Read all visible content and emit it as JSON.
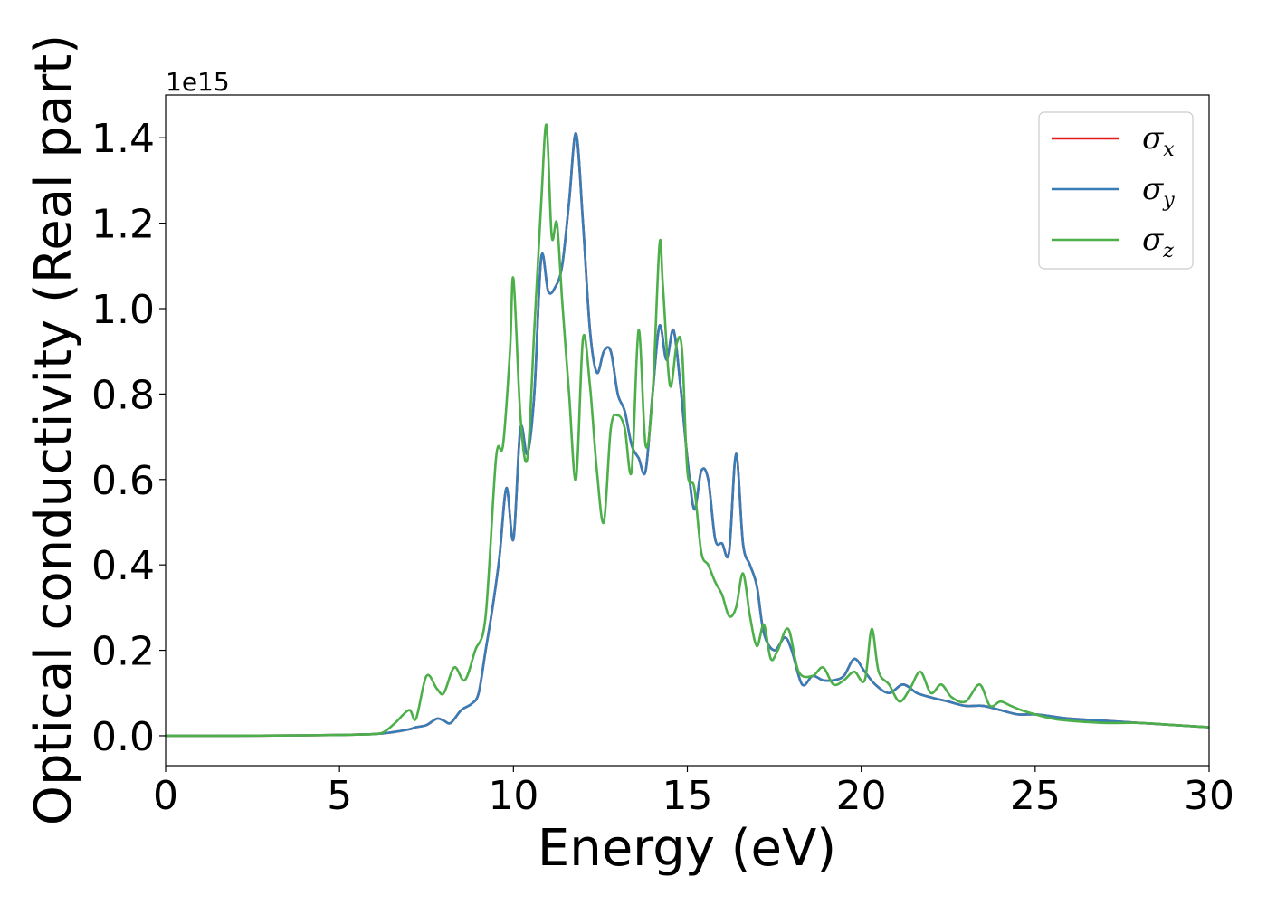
{
  "chart_data": {
    "type": "line",
    "xlabel": "Energy (eV)",
    "ylabel": "Optical conductivity (Real part)",
    "y_offset_label": "1e15",
    "xlim": [
      0,
      30
    ],
    "ylim": [
      -0.07,
      1.5
    ],
    "x_ticks": [
      0,
      5,
      10,
      15,
      20,
      25,
      30
    ],
    "x_tick_labels": [
      "0",
      "5",
      "10",
      "15",
      "20",
      "25",
      "30"
    ],
    "y_ticks": [
      0.0,
      0.2,
      0.4,
      0.6,
      0.8,
      1.0,
      1.2,
      1.4
    ],
    "y_tick_labels": [
      "0.0",
      "0.2",
      "0.4",
      "0.6",
      "0.8",
      "1.0",
      "1.2",
      "1.4"
    ],
    "grid": false,
    "legend_position": "top-right",
    "series": [
      {
        "name": "σx",
        "symbol": "σ",
        "subscript": "x",
        "color": "#e41a1c",
        "x": [
          0,
          2,
          4,
          5,
          6,
          6.5,
          7,
          7.2,
          7.5,
          7.8,
          8,
          8.2,
          8.5,
          8.8,
          9.0,
          9.2,
          9.4,
          9.6,
          9.8,
          10.0,
          10.2,
          10.4,
          10.6,
          10.8,
          11.0,
          11.2,
          11.4,
          11.6,
          11.8,
          12.0,
          12.2,
          12.4,
          12.6,
          12.8,
          13.0,
          13.2,
          13.4,
          13.6,
          13.8,
          14.0,
          14.2,
          14.4,
          14.6,
          14.8,
          15.0,
          15.2,
          15.4,
          15.6,
          15.8,
          16.0,
          16.2,
          16.4,
          16.6,
          16.8,
          17.0,
          17.2,
          17.5,
          17.8,
          18.0,
          18.3,
          18.6,
          18.9,
          19.2,
          19.5,
          19.8,
          20.1,
          20.4,
          20.8,
          21.2,
          21.6,
          22.0,
          22.5,
          23.0,
          23.5,
          24.0,
          24.5,
          25.0,
          25.5,
          26.0,
          27.0,
          28.0,
          29.0,
          30.0
        ],
        "y": [
          0,
          0,
          0.001,
          0.002,
          0.004,
          0.008,
          0.015,
          0.02,
          0.025,
          0.04,
          0.035,
          0.03,
          0.06,
          0.075,
          0.1,
          0.2,
          0.3,
          0.42,
          0.58,
          0.46,
          0.72,
          0.66,
          0.8,
          1.12,
          1.04,
          1.05,
          1.1,
          1.25,
          1.41,
          1.2,
          0.95,
          0.85,
          0.9,
          0.9,
          0.8,
          0.76,
          0.68,
          0.65,
          0.62,
          0.8,
          0.96,
          0.88,
          0.95,
          0.82,
          0.65,
          0.53,
          0.62,
          0.6,
          0.46,
          0.45,
          0.43,
          0.66,
          0.45,
          0.4,
          0.35,
          0.24,
          0.2,
          0.23,
          0.2,
          0.12,
          0.14,
          0.13,
          0.13,
          0.14,
          0.18,
          0.15,
          0.12,
          0.1,
          0.12,
          0.1,
          0.09,
          0.08,
          0.07,
          0.07,
          0.06,
          0.05,
          0.05,
          0.045,
          0.04,
          0.035,
          0.03,
          0.025,
          0.02
        ]
      },
      {
        "name": "σy",
        "symbol": "σ",
        "subscript": "y",
        "color": "#377eb8",
        "x": [
          0,
          2,
          4,
          5,
          6,
          6.5,
          7,
          7.2,
          7.5,
          7.8,
          8,
          8.2,
          8.5,
          8.8,
          9.0,
          9.2,
          9.4,
          9.6,
          9.8,
          10.0,
          10.2,
          10.4,
          10.6,
          10.8,
          11.0,
          11.2,
          11.4,
          11.6,
          11.8,
          12.0,
          12.2,
          12.4,
          12.6,
          12.8,
          13.0,
          13.2,
          13.4,
          13.6,
          13.8,
          14.0,
          14.2,
          14.4,
          14.6,
          14.8,
          15.0,
          15.2,
          15.4,
          15.6,
          15.8,
          16.0,
          16.2,
          16.4,
          16.6,
          16.8,
          17.0,
          17.2,
          17.5,
          17.8,
          18.0,
          18.3,
          18.6,
          18.9,
          19.2,
          19.5,
          19.8,
          20.1,
          20.4,
          20.8,
          21.2,
          21.6,
          22.0,
          22.5,
          23.0,
          23.5,
          24.0,
          24.5,
          25.0,
          25.5,
          26.0,
          27.0,
          28.0,
          29.0,
          30.0
        ],
        "y": [
          0,
          0,
          0.001,
          0.002,
          0.004,
          0.008,
          0.015,
          0.02,
          0.025,
          0.04,
          0.035,
          0.03,
          0.06,
          0.075,
          0.1,
          0.2,
          0.3,
          0.42,
          0.58,
          0.46,
          0.72,
          0.66,
          0.8,
          1.12,
          1.04,
          1.05,
          1.1,
          1.25,
          1.41,
          1.2,
          0.95,
          0.85,
          0.9,
          0.9,
          0.8,
          0.76,
          0.68,
          0.65,
          0.62,
          0.8,
          0.96,
          0.88,
          0.95,
          0.82,
          0.65,
          0.53,
          0.62,
          0.6,
          0.46,
          0.45,
          0.43,
          0.66,
          0.45,
          0.4,
          0.35,
          0.24,
          0.2,
          0.23,
          0.2,
          0.12,
          0.14,
          0.13,
          0.13,
          0.14,
          0.18,
          0.15,
          0.12,
          0.1,
          0.12,
          0.1,
          0.09,
          0.08,
          0.07,
          0.07,
          0.06,
          0.05,
          0.05,
          0.045,
          0.04,
          0.035,
          0.03,
          0.025,
          0.02
        ]
      },
      {
        "name": "σz",
        "symbol": "σ",
        "subscript": "z",
        "color": "#4daf4a",
        "x": [
          0,
          2,
          4,
          5,
          6,
          6.3,
          6.6,
          7.0,
          7.2,
          7.5,
          7.8,
          8.0,
          8.3,
          8.6,
          8.9,
          9.2,
          9.5,
          9.7,
          9.9,
          10.0,
          10.2,
          10.4,
          10.6,
          10.8,
          10.95,
          11.1,
          11.25,
          11.4,
          11.6,
          11.8,
          12.0,
          12.2,
          12.4,
          12.6,
          12.8,
          13.0,
          13.2,
          13.4,
          13.6,
          13.8,
          14.0,
          14.2,
          14.3,
          14.5,
          14.7,
          14.85,
          15.0,
          15.2,
          15.4,
          15.6,
          15.8,
          16.0,
          16.2,
          16.4,
          16.6,
          16.8,
          17.0,
          17.2,
          17.4,
          17.6,
          17.9,
          18.2,
          18.6,
          18.9,
          19.2,
          19.5,
          19.8,
          20.1,
          20.3,
          20.5,
          20.8,
          21.1,
          21.4,
          21.7,
          22.0,
          22.3,
          22.6,
          23.0,
          23.4,
          23.7,
          24.0,
          24.3,
          24.6,
          25.0,
          25.5,
          26.0,
          27.0,
          28.0,
          29.0,
          30.0
        ],
        "y": [
          0,
          0,
          0.001,
          0.002,
          0.004,
          0.01,
          0.03,
          0.06,
          0.04,
          0.14,
          0.11,
          0.1,
          0.16,
          0.13,
          0.2,
          0.28,
          0.65,
          0.68,
          0.9,
          1.07,
          0.75,
          0.65,
          0.95,
          1.25,
          1.43,
          1.17,
          1.2,
          1.02,
          0.8,
          0.6,
          0.93,
          0.82,
          0.62,
          0.5,
          0.72,
          0.75,
          0.72,
          0.62,
          0.95,
          0.68,
          0.8,
          1.15,
          1.05,
          0.82,
          0.92,
          0.9,
          0.62,
          0.58,
          0.43,
          0.4,
          0.36,
          0.33,
          0.28,
          0.3,
          0.38,
          0.28,
          0.21,
          0.26,
          0.18,
          0.2,
          0.25,
          0.15,
          0.14,
          0.16,
          0.12,
          0.13,
          0.15,
          0.13,
          0.25,
          0.15,
          0.12,
          0.08,
          0.11,
          0.15,
          0.1,
          0.12,
          0.09,
          0.08,
          0.12,
          0.07,
          0.08,
          0.07,
          0.06,
          0.05,
          0.04,
          0.035,
          0.03,
          0.03,
          0.025,
          0.02
        ]
      }
    ]
  }
}
